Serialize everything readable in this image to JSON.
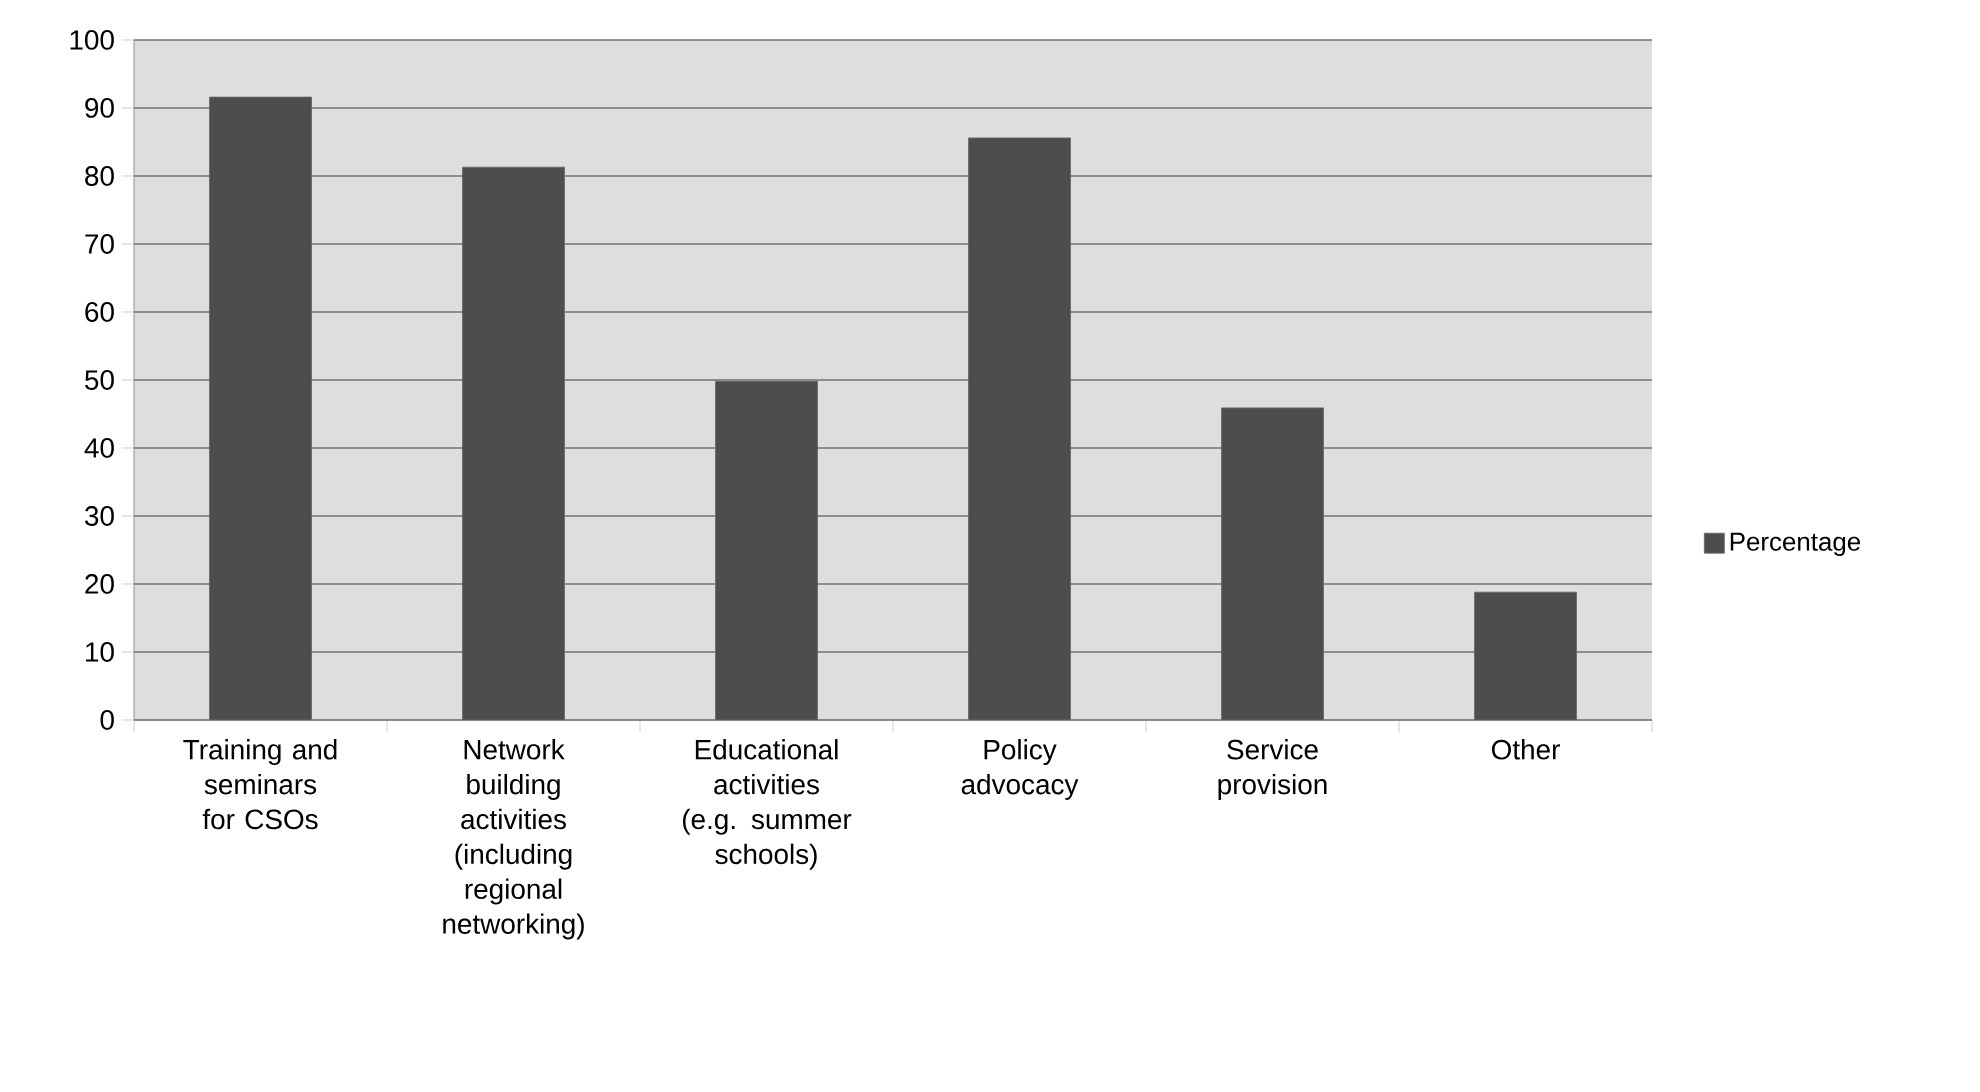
{
  "chart_data": {
    "type": "bar",
    "categories": [
      "Training and seminars for CSOs",
      "Network building activities (including regional networking)",
      "Educational activities (e.g. summer schools)",
      "Policy advocacy",
      "Service provision",
      "Other"
    ],
    "series": [
      {
        "name": "Percentage",
        "color": "#4d4d4d",
        "values": [
          91.6,
          81.3,
          49.8,
          85.6,
          45.9,
          18.8
        ]
      }
    ],
    "ylim": [
      0,
      100
    ],
    "yticks": [
      0,
      10,
      20,
      30,
      40,
      50,
      60,
      70,
      80,
      90,
      100
    ],
    "grid": "y",
    "legend": "right"
  }
}
